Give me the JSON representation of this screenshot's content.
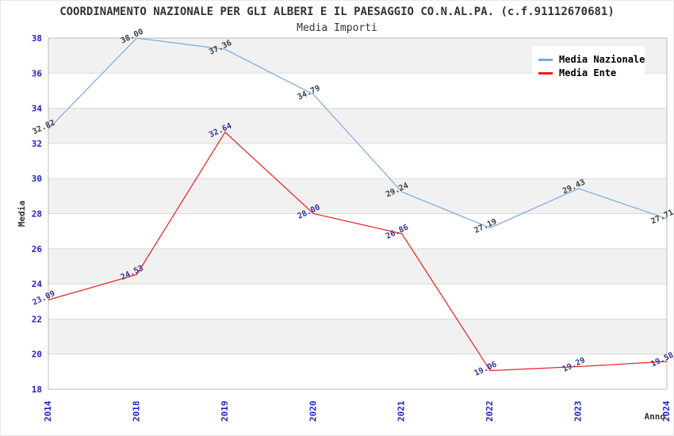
{
  "chart_data": {
    "type": "line",
    "title": "COORDINAMENTO NAZIONALE PER GLI ALBERI E IL PAESAGGIO CO.N.AL.PA. (c.f.91112670681)",
    "subtitle": "Media Importi",
    "xlabel": "Anno",
    "ylabel": "Media",
    "categories": [
      "2014",
      "2018",
      "2019",
      "2020",
      "2021",
      "2022",
      "2023",
      "2024"
    ],
    "series": [
      {
        "name": "Media Nazionale",
        "color": "#7aa9e4",
        "label_color": "#3d3d3d",
        "values": [
          32.82,
          38.0,
          37.36,
          34.79,
          29.24,
          27.19,
          29.43,
          27.71
        ]
      },
      {
        "name": "Media Ente",
        "color": "#ee1c1c",
        "label_color": "#333399",
        "values": [
          23.09,
          24.53,
          32.64,
          28.0,
          26.86,
          19.06,
          19.29,
          19.58
        ]
      }
    ],
    "ylim": [
      18,
      38
    ],
    "ytick_step": 2,
    "grid": true,
    "legend_position": "top-right",
    "band_color": "#f1f1f1",
    "gridline_color": "#dadada",
    "axis_color": "#bbbbbb",
    "tick_label_color": "#2222cc",
    "value_label_decimals": 2
  }
}
